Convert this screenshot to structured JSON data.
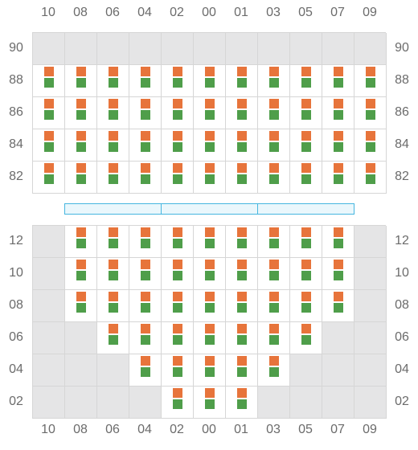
{
  "columns": [
    "10",
    "08",
    "06",
    "04",
    "02",
    "00",
    "01",
    "03",
    "05",
    "07",
    "09"
  ],
  "colors": {
    "top_square": "#e7743b",
    "bottom_square": "#4f9e4a",
    "blocked": "#e5e5e6",
    "grid_line": "#d6d6d6",
    "divider_border": "#46b6df",
    "divider_fill": "#eaf7fc"
  },
  "upper_section": {
    "rows": [
      {
        "label": "90",
        "cells": "00000000000"
      },
      {
        "label": "88",
        "cells": "11111111111"
      },
      {
        "label": "86",
        "cells": "11111111111"
      },
      {
        "label": "84",
        "cells": "11111111111"
      },
      {
        "label": "82",
        "cells": "11111111111"
      }
    ]
  },
  "divider": {
    "segments": 3
  },
  "lower_section": {
    "rows": [
      {
        "label": "12",
        "cells": "01111111110"
      },
      {
        "label": "10",
        "cells": "01111111110"
      },
      {
        "label": "08",
        "cells": "01111111110"
      },
      {
        "label": "06",
        "cells": "00111111100"
      },
      {
        "label": "04",
        "cells": "00011111000"
      },
      {
        "label": "02",
        "cells": "00001110000"
      }
    ]
  }
}
